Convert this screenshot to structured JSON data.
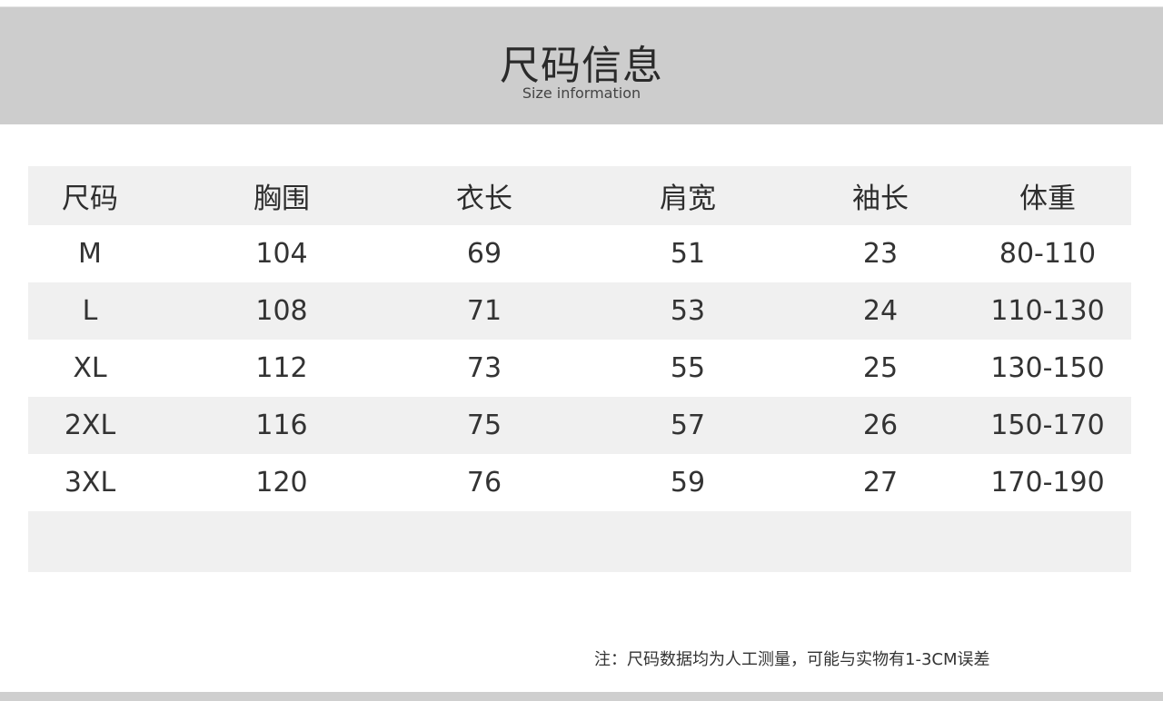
{
  "header": {
    "title": "尺码信息",
    "subtitle": "Size information"
  },
  "table": {
    "columns": [
      "尺码",
      "胸围",
      "衣长",
      "肩宽",
      "袖长",
      "体重"
    ],
    "rows": [
      [
        "M",
        "104",
        "69",
        "51",
        "23",
        "80-110"
      ],
      [
        "L",
        "108",
        "71",
        "53",
        "24",
        "110-130"
      ],
      [
        "XL",
        "112",
        "73",
        "55",
        "25",
        "130-150"
      ],
      [
        "2XL",
        "116",
        "75",
        "57",
        "26",
        "150-170"
      ],
      [
        "3XL",
        "120",
        "76",
        "59",
        "27",
        "170-190"
      ]
    ]
  },
  "note": "注：尺码数据均为人工测量，可能与实物有1-3CM误差",
  "colors": {
    "banner": "#cdcdcd",
    "row_shade": "#f0f0f0"
  }
}
